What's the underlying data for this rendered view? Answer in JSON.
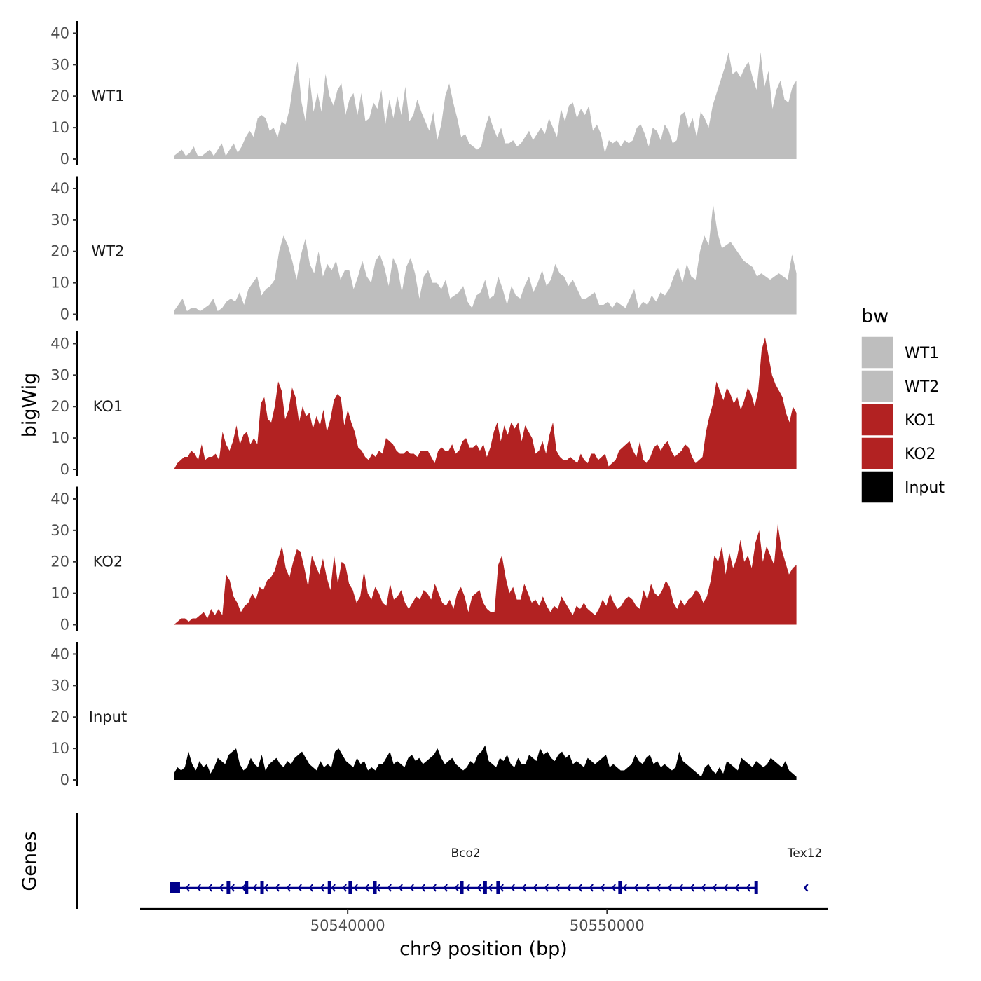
{
  "chart_data": {
    "type": "area",
    "ylabel": "bigWig",
    "xlabel": "chr9 position (bp)",
    "xlim": [
      50532000,
      50558500
    ],
    "ylim": [
      0,
      43
    ],
    "yticks": [
      0,
      10,
      20,
      30,
      40
    ],
    "xticks": [
      50540000,
      50550000
    ],
    "xtick_labels": [
      "50540000",
      "50550000"
    ],
    "region": [
      50533300,
      50557300
    ],
    "legend": {
      "title": "bw",
      "entries": [
        {
          "name": "WT1",
          "color": "#bebebe"
        },
        {
          "name": "WT2",
          "color": "#bebebe"
        },
        {
          "name": "KO1",
          "color": "#b22222"
        },
        {
          "name": "KO2",
          "color": "#b22222"
        },
        {
          "name": "Input",
          "color": "#000000"
        }
      ]
    },
    "series": [
      {
        "name": "WT1",
        "color": "#bebebe",
        "values": [
          1,
          2,
          3,
          1,
          2,
          4,
          1,
          1,
          2,
          3,
          1,
          3,
          5,
          1,
          3,
          5,
          2,
          4,
          7,
          9,
          7,
          13,
          14,
          13,
          9,
          10,
          7,
          12,
          11,
          16,
          25,
          31,
          18,
          12,
          26,
          15,
          21,
          15,
          27,
          20,
          17,
          22,
          24,
          14,
          19,
          21,
          14,
          21,
          12,
          13,
          18,
          16,
          22,
          11,
          19,
          13,
          20,
          14,
          23,
          12,
          14,
          19,
          15,
          12,
          9,
          15,
          6,
          11,
          20,
          24,
          18,
          13,
          7,
          8,
          5,
          4,
          3,
          4,
          10,
          14,
          10,
          7,
          10,
          5,
          5,
          6,
          4,
          5,
          7,
          9,
          6,
          8,
          10,
          8,
          13,
          10,
          7,
          16,
          12,
          17,
          18,
          13,
          16,
          14,
          17,
          9,
          11,
          8,
          2,
          6,
          5,
          6,
          4,
          6,
          5,
          6,
          10,
          11,
          8,
          4,
          10,
          9,
          6,
          11,
          9,
          5,
          6,
          14,
          15,
          10,
          13,
          7,
          15,
          13,
          10,
          17,
          21,
          25,
          29,
          34,
          27,
          28,
          26,
          29,
          31,
          26,
          22,
          34,
          23,
          28,
          16,
          22,
          25,
          19,
          18,
          23,
          25
        ]
      },
      {
        "name": "WT2",
        "color": "#bebebe",
        "values": [
          1,
          3,
          5,
          1,
          2,
          2,
          1,
          2,
          3,
          5,
          1,
          2,
          4,
          5,
          4,
          7,
          3,
          8,
          10,
          12,
          6,
          8,
          9,
          11,
          20,
          25,
          22,
          17,
          11,
          19,
          24,
          16,
          13,
          20,
          12,
          16,
          14,
          17,
          11,
          14,
          14,
          8,
          12,
          17,
          12,
          10,
          17,
          19,
          15,
          9,
          18,
          15,
          7,
          15,
          18,
          13,
          5,
          12,
          14,
          10,
          10,
          8,
          11,
          5,
          6,
          7,
          9,
          4,
          2,
          6,
          7,
          11,
          5,
          6,
          12,
          8,
          3,
          9,
          6,
          5,
          9,
          12,
          7,
          10,
          14,
          9,
          11,
          16,
          13,
          12,
          9,
          11,
          8,
          5,
          5,
          6,
          7,
          3,
          3,
          4,
          2,
          4,
          3,
          2,
          5,
          8,
          2,
          4,
          3,
          6,
          4,
          7,
          6,
          8,
          12,
          15,
          10,
          16,
          12,
          11,
          20,
          25,
          22,
          35,
          26,
          21,
          22,
          23,
          21,
          19,
          17,
          16,
          15,
          12,
          13,
          12,
          11,
          12,
          13,
          12,
          11,
          19,
          13
        ]
      },
      {
        "name": "KO1",
        "color": "#b22222",
        "values": [
          0,
          2,
          3,
          4,
          4,
          6,
          5,
          3,
          8,
          3,
          4,
          4,
          5,
          3,
          12,
          8,
          6,
          9,
          14,
          8,
          11,
          12,
          8,
          10,
          8,
          21,
          23,
          16,
          15,
          20,
          28,
          25,
          16,
          19,
          26,
          23,
          15,
          20,
          17,
          18,
          13,
          17,
          14,
          19,
          12,
          16,
          22,
          24,
          23,
          14,
          19,
          15,
          12,
          7,
          6,
          4,
          3,
          5,
          4,
          6,
          5,
          10,
          9,
          8,
          6,
          5,
          5,
          6,
          5,
          5,
          4,
          6,
          6,
          6,
          4,
          2,
          6,
          7,
          6,
          6,
          8,
          5,
          6,
          9,
          10,
          7,
          7,
          8,
          6,
          8,
          4,
          7,
          12,
          15,
          9,
          14,
          11,
          15,
          13,
          15,
          9,
          14,
          12,
          10,
          5,
          6,
          9,
          5,
          11,
          15,
          6,
          4,
          3,
          3,
          4,
          3,
          2,
          5,
          3,
          2,
          5,
          5,
          3,
          4,
          5,
          1,
          2,
          3,
          6,
          7,
          8,
          9,
          6,
          4,
          9,
          3,
          2,
          4,
          7,
          8,
          6,
          8,
          9,
          6,
          4,
          5,
          6,
          8,
          7,
          4,
          2,
          3,
          4,
          12,
          17,
          21,
          28,
          25,
          22,
          26,
          24,
          21,
          23,
          19,
          22,
          26,
          24,
          20,
          25,
          38,
          42,
          36,
          30,
          27,
          25,
          23,
          18,
          15,
          20,
          18
        ]
      },
      {
        "name": "KO2",
        "color": "#b22222",
        "values": [
          0,
          1,
          2,
          2,
          1,
          2,
          2,
          3,
          4,
          2,
          5,
          3,
          5,
          3,
          16,
          14,
          9,
          7,
          4,
          6,
          7,
          10,
          8,
          12,
          11,
          14,
          15,
          17,
          21,
          25,
          18,
          15,
          20,
          24,
          23,
          18,
          12,
          22,
          19,
          16,
          21,
          15,
          11,
          22,
          13,
          20,
          19,
          13,
          11,
          7,
          9,
          17,
          10,
          8,
          12,
          10,
          7,
          6,
          13,
          8,
          9,
          11,
          7,
          5,
          7,
          9,
          8,
          11,
          10,
          8,
          13,
          10,
          7,
          6,
          8,
          5,
          10,
          12,
          9,
          4,
          9,
          10,
          11,
          7,
          5,
          4,
          4,
          19,
          22,
          15,
          10,
          12,
          8,
          8,
          13,
          10,
          7,
          8,
          6,
          9,
          6,
          4,
          6,
          5,
          9,
          7,
          5,
          3,
          6,
          5,
          7,
          5,
          4,
          3,
          5,
          8,
          6,
          10,
          7,
          5,
          6,
          8,
          9,
          8,
          6,
          5,
          11,
          8,
          13,
          10,
          9,
          11,
          14,
          12,
          7,
          5,
          8,
          6,
          8,
          9,
          11,
          10,
          7,
          9,
          14,
          22,
          20,
          25,
          16,
          23,
          18,
          21,
          27,
          20,
          22,
          18,
          26,
          30,
          20,
          25,
          22,
          19,
          32,
          24,
          20,
          16,
          18,
          19
        ]
      },
      {
        "name": "Input",
        "color": "#000000",
        "values": [
          2,
          4,
          3,
          4,
          9,
          5,
          3,
          6,
          4,
          5,
          2,
          4,
          7,
          6,
          5,
          8,
          9,
          10,
          5,
          3,
          4,
          7,
          5,
          4,
          8,
          3,
          5,
          6,
          7,
          5,
          4,
          6,
          5,
          7,
          8,
          9,
          7,
          5,
          4,
          3,
          6,
          4,
          5,
          4,
          9,
          10,
          8,
          6,
          5,
          4,
          7,
          5,
          6,
          3,
          4,
          3,
          5,
          5,
          7,
          9,
          5,
          6,
          5,
          4,
          7,
          8,
          6,
          7,
          5,
          6,
          7,
          8,
          10,
          7,
          5,
          6,
          7,
          5,
          4,
          3,
          4,
          6,
          5,
          8,
          9,
          11,
          6,
          5,
          4,
          7,
          6,
          8,
          5,
          4,
          7,
          5,
          5,
          8,
          7,
          6,
          10,
          8,
          9,
          7,
          6,
          8,
          9,
          7,
          8,
          5,
          6,
          5,
          4,
          7,
          6,
          5,
          6,
          7,
          8,
          4,
          5,
          4,
          3,
          3,
          4,
          5,
          8,
          6,
          5,
          7,
          8,
          5,
          6,
          4,
          5,
          4,
          3,
          4,
          9,
          6,
          5,
          4,
          3,
          2,
          1,
          4,
          5,
          3,
          2,
          4,
          2,
          6,
          5,
          4,
          3,
          7,
          6,
          5,
          4,
          6,
          5,
          4,
          5,
          7,
          6,
          5,
          4,
          6,
          3,
          2,
          1
        ]
      }
    ],
    "gene_track": {
      "label": "Genes",
      "genes": [
        {
          "name": "Bco2",
          "start": 50533300,
          "end": 50555800,
          "strand": "-",
          "exons": [
            50533350,
            50535400,
            50536100,
            50536700,
            50539300,
            50540100,
            50541050,
            50544400,
            50545300,
            50545800,
            50550500,
            50555750
          ]
        },
        {
          "name": "Tex12",
          "start": 50557250,
          "end": 50558000,
          "strand": "-",
          "exons": []
        }
      ]
    }
  }
}
